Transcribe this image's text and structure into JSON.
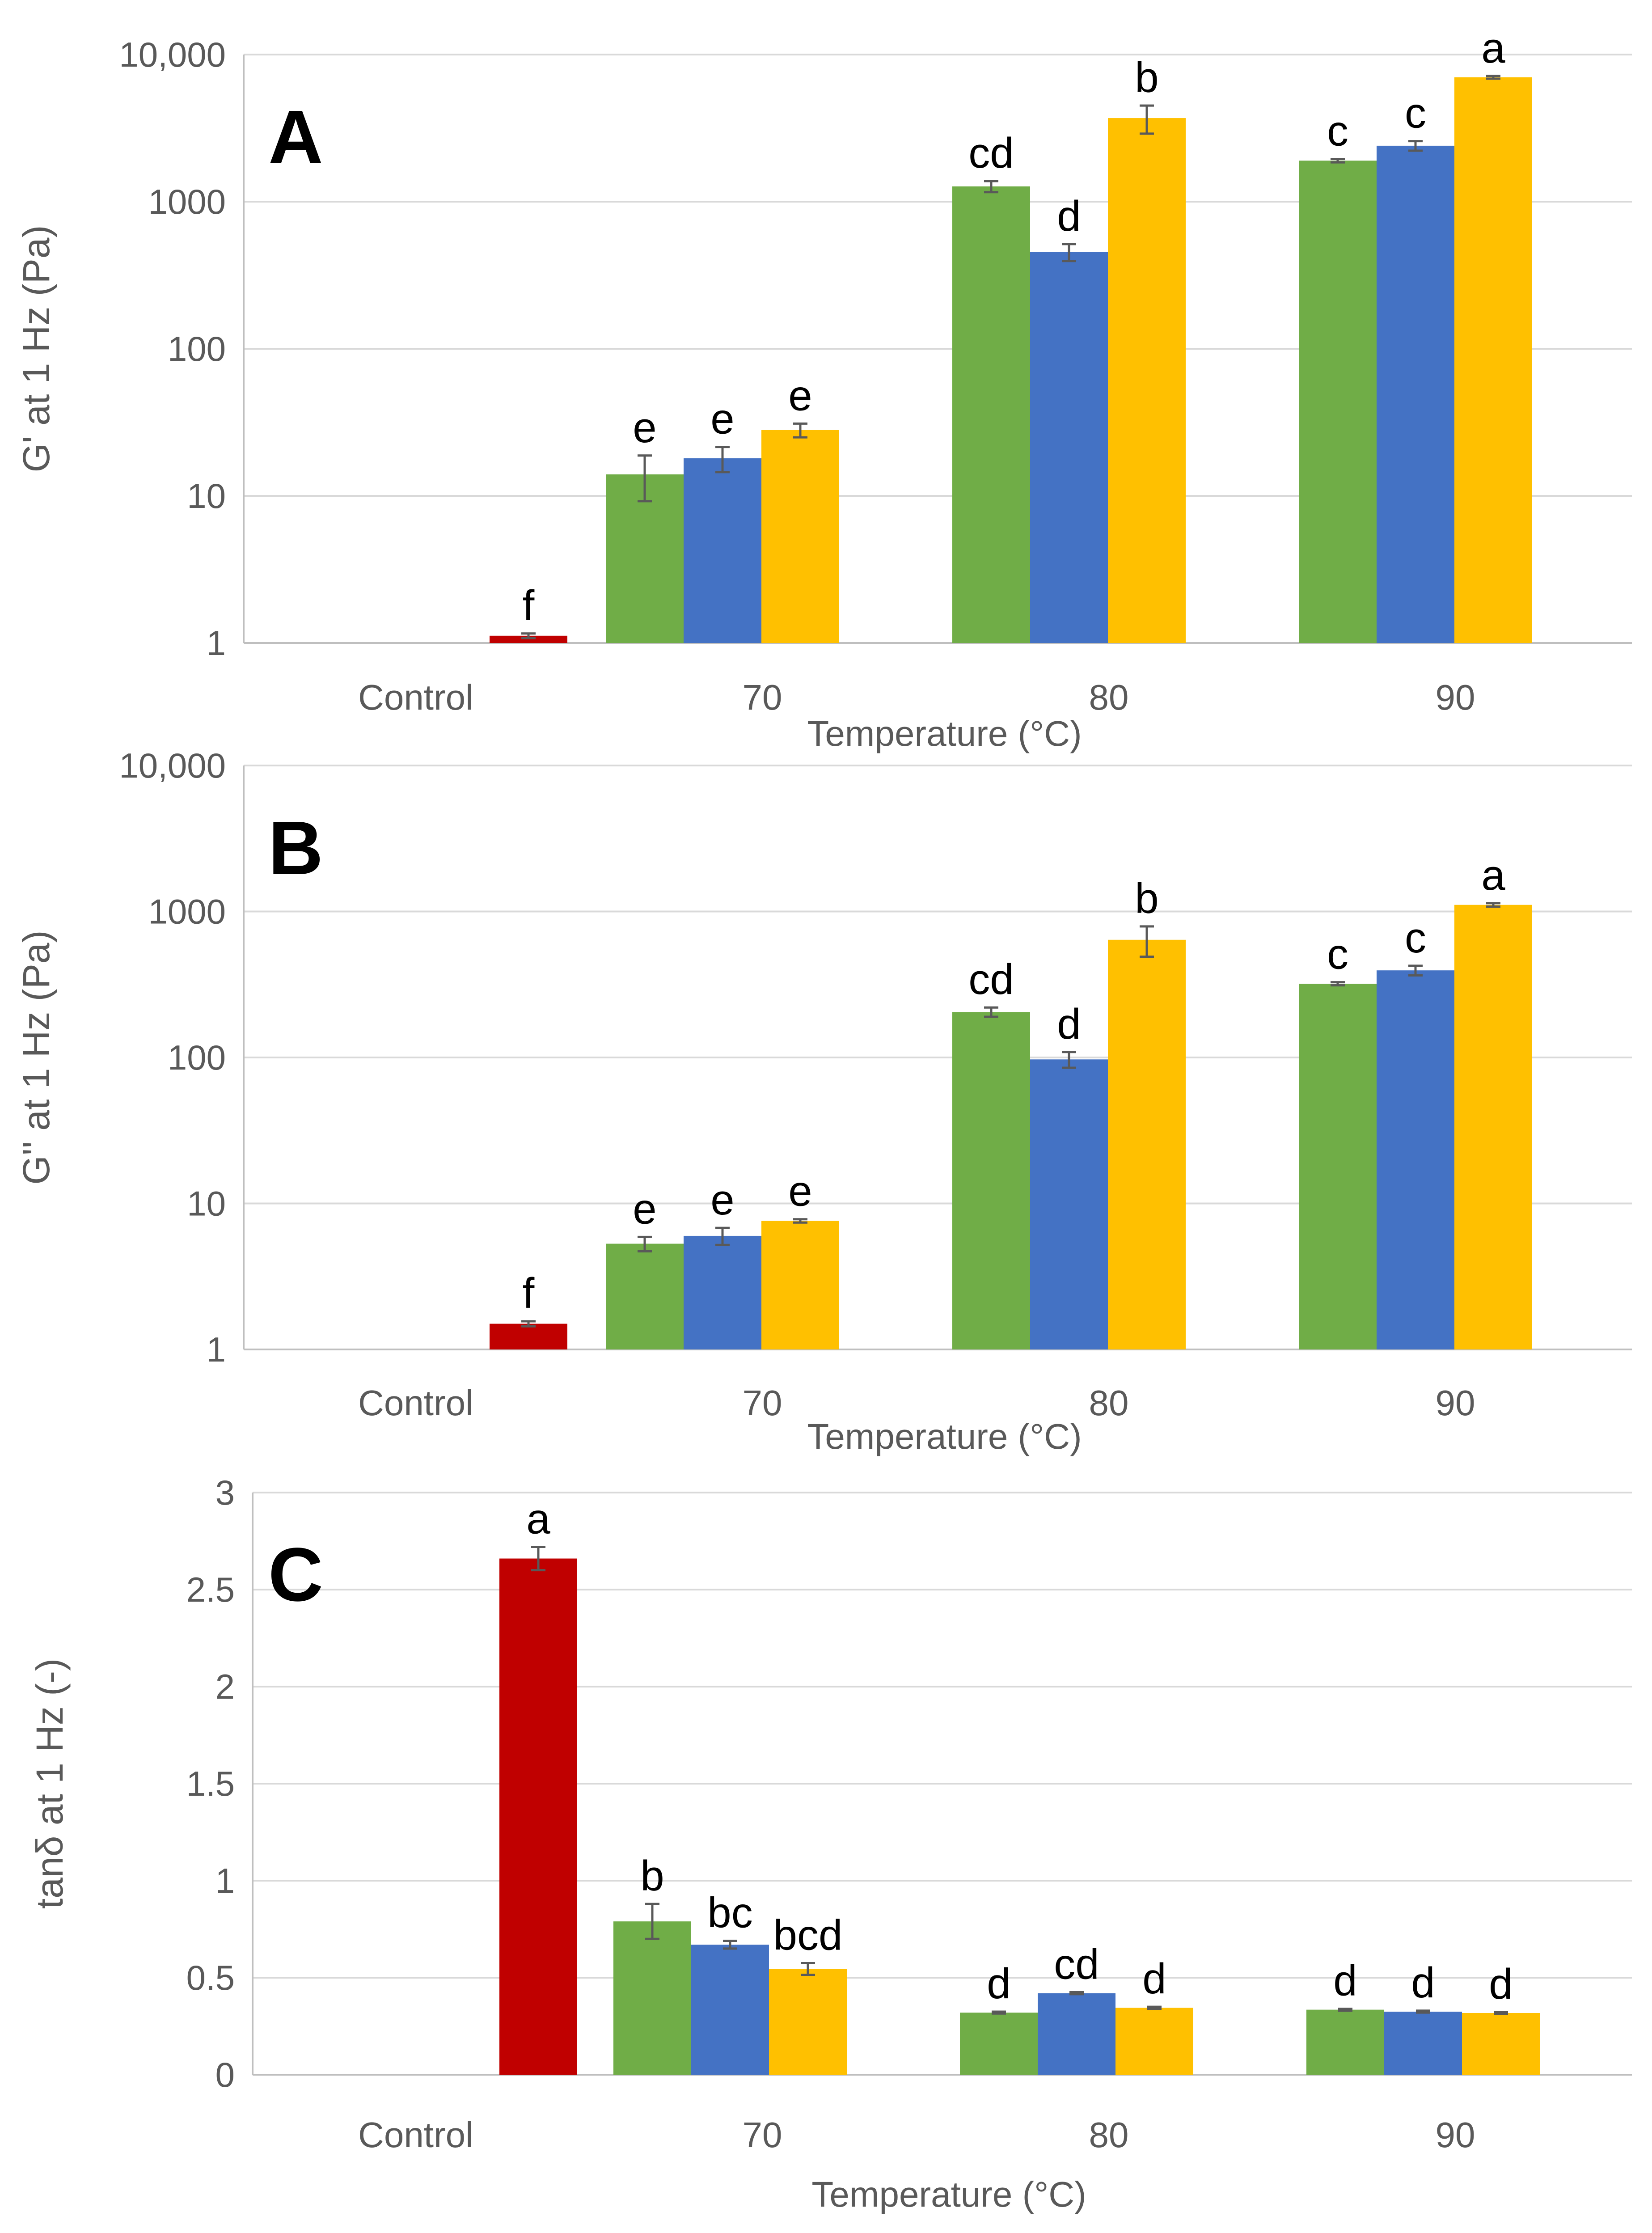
{
  "colors": {
    "control": "#c00000",
    "series1": "#70ad47",
    "series2": "#4472c4",
    "series3": "#ffc000"
  },
  "chart_data": [
    {
      "panel": "A",
      "type": "bar",
      "scale": "log",
      "ylabel": "G' at 1 Hz (Pa)",
      "xlabel": "Temperature (°C)",
      "ylim": [
        1,
        10000
      ],
      "yticks": [
        {
          "value": 1,
          "label": "1"
        },
        {
          "value": 10,
          "label": "10"
        },
        {
          "value": 100,
          "label": "100"
        },
        {
          "value": 1000,
          "label": "1000"
        },
        {
          "value": 10000,
          "label": "10,000"
        }
      ],
      "categories": [
        "Control",
        "70",
        "80",
        "90"
      ],
      "bars": [
        {
          "group": 0,
          "series": "control",
          "value": 1.12,
          "err": 0.04,
          "letter": "f"
        },
        {
          "group": 1,
          "series": "series1",
          "value": 14,
          "err": 4.8,
          "letter": "e"
        },
        {
          "group": 1,
          "series": "series2",
          "value": 18,
          "err": 3.5,
          "letter": "e"
        },
        {
          "group": 1,
          "series": "series3",
          "value": 28,
          "err": 3,
          "letter": "e"
        },
        {
          "group": 2,
          "series": "series1",
          "value": 1270,
          "err": 110,
          "letter": "cd"
        },
        {
          "group": 2,
          "series": "series2",
          "value": 455,
          "err": 60,
          "letter": "d"
        },
        {
          "group": 2,
          "series": "series3",
          "value": 3700,
          "err": 800,
          "letter": "b"
        },
        {
          "group": 3,
          "series": "series1",
          "value": 1900,
          "err": 50,
          "letter": "c"
        },
        {
          "group": 3,
          "series": "series2",
          "value": 2400,
          "err": 180,
          "letter": "c"
        },
        {
          "group": 3,
          "series": "series3",
          "value": 7000,
          "err": 150,
          "letter": "a"
        }
      ]
    },
    {
      "panel": "B",
      "type": "bar",
      "scale": "log",
      "ylabel": "G'' at 1 Hz (Pa)",
      "xlabel": "Temperature (°C)",
      "ylim": [
        1,
        10000
      ],
      "yticks": [
        {
          "value": 1,
          "label": "1"
        },
        {
          "value": 10,
          "label": "10"
        },
        {
          "value": 100,
          "label": "100"
        },
        {
          "value": 1000,
          "label": "1000"
        },
        {
          "value": 10000,
          "label": "10,000"
        }
      ],
      "categories": [
        "Control",
        "70",
        "80",
        "90"
      ],
      "bars": [
        {
          "group": 0,
          "series": "control",
          "value": 1.5,
          "err": 0.06,
          "letter": "f"
        },
        {
          "group": 1,
          "series": "series1",
          "value": 5.3,
          "err": 0.6,
          "letter": "e"
        },
        {
          "group": 1,
          "series": "series2",
          "value": 6.0,
          "err": 0.8,
          "letter": "e"
        },
        {
          "group": 1,
          "series": "series3",
          "value": 7.6,
          "err": 0.2,
          "letter": "e"
        },
        {
          "group": 2,
          "series": "series1",
          "value": 205,
          "err": 15,
          "letter": "cd"
        },
        {
          "group": 2,
          "series": "series2",
          "value": 97,
          "err": 12,
          "letter": "d"
        },
        {
          "group": 2,
          "series": "series3",
          "value": 640,
          "err": 150,
          "letter": "b"
        },
        {
          "group": 3,
          "series": "series1",
          "value": 320,
          "err": 8,
          "letter": "c"
        },
        {
          "group": 3,
          "series": "series2",
          "value": 395,
          "err": 30,
          "letter": "c"
        },
        {
          "group": 3,
          "series": "series3",
          "value": 1110,
          "err": 30,
          "letter": "a"
        }
      ]
    },
    {
      "panel": "C",
      "type": "bar",
      "scale": "linear",
      "ylabel": "tanδ at 1 Hz (-)",
      "xlabel": "Temperature (°C)",
      "ylim": [
        0,
        3
      ],
      "yticks": [
        {
          "value": 0,
          "label": "0"
        },
        {
          "value": 0.5,
          "label": "0.5"
        },
        {
          "value": 1,
          "label": "1"
        },
        {
          "value": 1.5,
          "label": "1.5"
        },
        {
          "value": 2,
          "label": "2"
        },
        {
          "value": 2.5,
          "label": "2.5"
        },
        {
          "value": 3,
          "label": "3"
        }
      ],
      "categories": [
        "Control",
        "70",
        "80",
        "90"
      ],
      "bars": [
        {
          "group": 0,
          "series": "control",
          "value": 2.66,
          "err": 0.06,
          "letter": "a"
        },
        {
          "group": 1,
          "series": "series1",
          "value": 0.79,
          "err": 0.09,
          "letter": "b"
        },
        {
          "group": 1,
          "series": "series2",
          "value": 0.67,
          "err": 0.02,
          "letter": "bc"
        },
        {
          "group": 1,
          "series": "series3",
          "value": 0.545,
          "err": 0.03,
          "letter": "bcd"
        },
        {
          "group": 2,
          "series": "series1",
          "value": 0.32,
          "err": 0.005,
          "letter": "d"
        },
        {
          "group": 2,
          "series": "series2",
          "value": 0.42,
          "err": 0.005,
          "letter": "cd"
        },
        {
          "group": 2,
          "series": "series3",
          "value": 0.345,
          "err": 0.005,
          "letter": "d"
        },
        {
          "group": 3,
          "series": "series1",
          "value": 0.335,
          "err": 0.005,
          "letter": "d"
        },
        {
          "group": 3,
          "series": "series2",
          "value": 0.325,
          "err": 0.005,
          "letter": "d"
        },
        {
          "group": 3,
          "series": "series3",
          "value": 0.318,
          "err": 0.005,
          "letter": "d"
        }
      ]
    }
  ]
}
